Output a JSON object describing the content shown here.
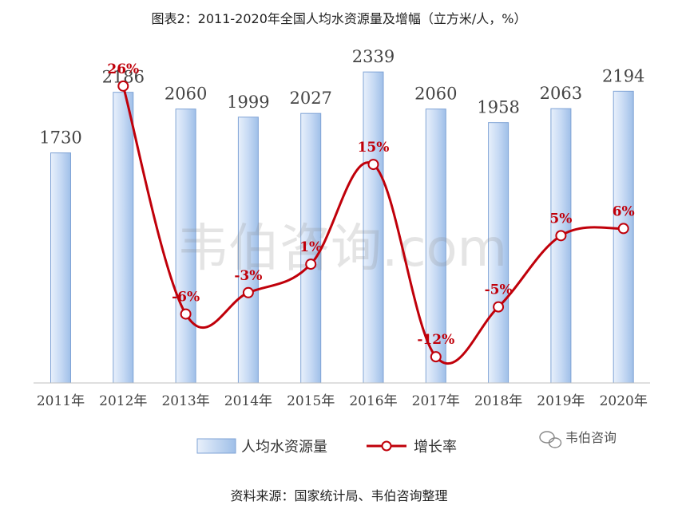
{
  "chart_data": {
    "type": "bar",
    "title": "图表2：2011-2020年全国人均水资源量及增幅（立方米/人，%）",
    "categories": [
      "2011年",
      "2012年",
      "2013年",
      "2014年",
      "2015年",
      "2016年",
      "2017年",
      "2018年",
      "2019年",
      "2020年"
    ],
    "series": [
      {
        "name": "人均水资源量",
        "type": "bar",
        "values": [
          1730,
          2186,
          2060,
          1999,
          2027,
          2339,
          2060,
          1958,
          2063,
          2194
        ],
        "labels": [
          "1730",
          "2186",
          "2060",
          "1999",
          "2027",
          "2339",
          "2060",
          "1958",
          "2063",
          "2194"
        ],
        "color": "#bcd4f2"
      },
      {
        "name": "增长率",
        "type": "line",
        "values": [
          null,
          26,
          -6,
          -3,
          1,
          15,
          -12,
          -5,
          5,
          6
        ],
        "labels": [
          "",
          "26%",
          "-6%",
          "-3%",
          "1%",
          "15%",
          "-12%",
          "-5%",
          "5%",
          "6%"
        ],
        "color": "#c0000a"
      }
    ],
    "ylim_bar": [
      0,
      2400
    ],
    "ylim_line": [
      -14,
      28
    ],
    "grid": false,
    "legend_position": "bottom"
  },
  "watermark": "韦伯咨询.com",
  "brand": "韦伯咨询",
  "source": "资料来源：国家统计局、韦伯咨询整理"
}
